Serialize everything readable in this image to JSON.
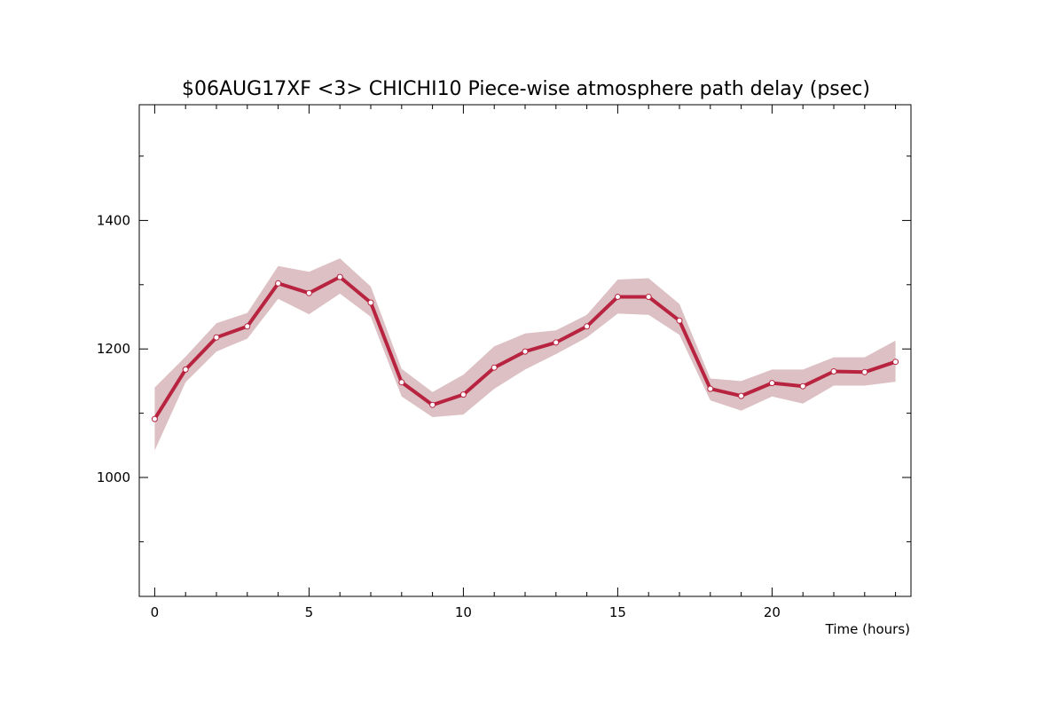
{
  "chart_data": {
    "type": "line",
    "title": "$06AUG17XF <3>  CHICHI10  Piece-wise atmosphere path delay (psec)",
    "xlabel": "Time (hours)",
    "ylabel": "",
    "xlim": [
      -0.5,
      24.5
    ],
    "ylim": [
      815,
      1580
    ],
    "x_ticks": [
      0,
      5,
      10,
      15,
      20
    ],
    "x_tick_labels": [
      "0",
      "5",
      "10",
      "15",
      "20"
    ],
    "y_ticks": [
      1000,
      1200,
      1400
    ],
    "y_tick_labels": [
      "1000",
      "1200",
      "1400"
    ],
    "grid": false,
    "colors": {
      "line": "#b8243f",
      "band": "#dcc0c4",
      "marker_fill": "#ffffff"
    },
    "x": [
      0,
      1,
      2,
      3,
      4,
      5,
      6,
      7,
      8,
      9,
      10,
      11,
      12,
      13,
      14,
      15,
      16,
      17,
      18,
      19,
      20,
      21,
      22,
      23,
      24
    ],
    "series": [
      {
        "values": [
          1091,
          1168,
          1218,
          1235,
          1302,
          1287,
          1312,
          1272,
          1148,
          1113,
          1129,
          1171,
          1196,
          1210,
          1235,
          1281,
          1281,
          1244,
          1138,
          1127,
          1147,
          1142,
          1165,
          1164,
          1180
        ],
        "lower": [
          1042,
          1148,
          1196,
          1216,
          1278,
          1254,
          1286,
          1250,
          1126,
          1094,
          1098,
          1138,
          1168,
          1192,
          1218,
          1255,
          1253,
          1222,
          1120,
          1104,
          1126,
          1115,
          1143,
          1143,
          1149
        ],
        "upper": [
          1140,
          1188,
          1240,
          1256,
          1329,
          1320,
          1341,
          1297,
          1169,
          1133,
          1160,
          1204,
          1224,
          1229,
          1253,
          1308,
          1310,
          1270,
          1154,
          1150,
          1168,
          1168,
          1187,
          1187,
          1213
        ]
      }
    ]
  }
}
